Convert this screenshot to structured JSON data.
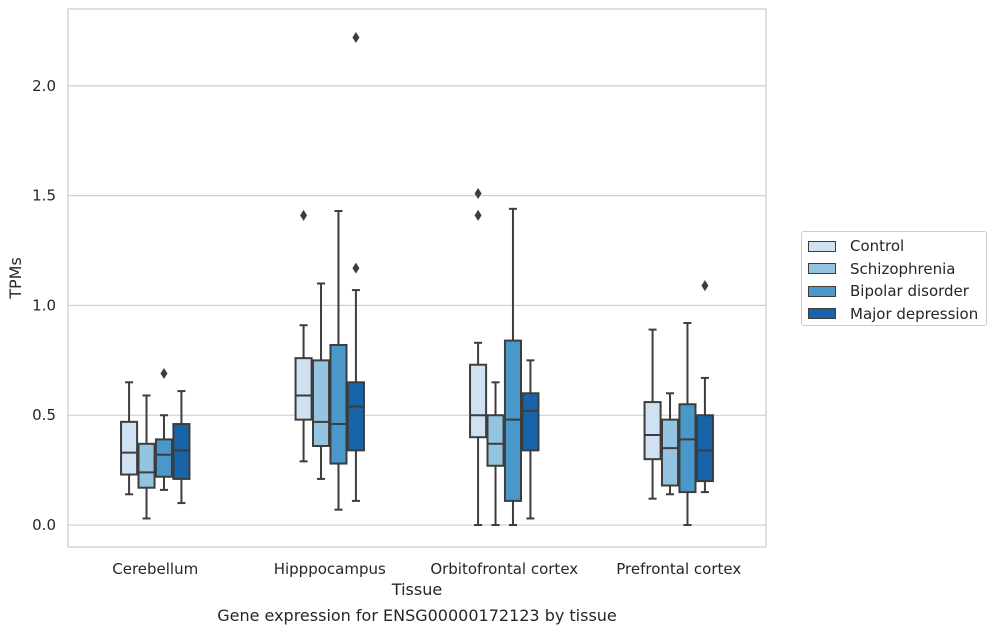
{
  "caption": "Gene expression for ENSG00000172123 by tissue",
  "chart_data": {
    "type": "box",
    "xlabel": "Tissue",
    "ylabel": "TPMs",
    "ylim": [
      -0.1,
      2.35
    ],
    "yticks": [
      0.0,
      0.5,
      1.0,
      1.5,
      2.0
    ],
    "ytick_labels": [
      "0.0",
      "0.5",
      "1.0",
      "1.5",
      "2.0"
    ],
    "grid": "horizontal",
    "legend_position": "right",
    "categories": [
      "Cerebellum",
      "Hipppocampus",
      "Orbitofrontal cortex",
      "Prefrontal cortex"
    ],
    "series": [
      {
        "name": "Control",
        "color": "#d0e1f2",
        "boxes": [
          {
            "whisker_low": 0.14,
            "q1": 0.23,
            "median": 0.33,
            "q3": 0.47,
            "whisker_high": 0.65,
            "outliers": []
          },
          {
            "whisker_low": 0.29,
            "q1": 0.48,
            "median": 0.59,
            "q3": 0.76,
            "whisker_high": 0.91,
            "outliers": [
              1.41
            ]
          },
          {
            "whisker_low": 0.0,
            "q1": 0.4,
            "median": 0.5,
            "q3": 0.73,
            "whisker_high": 0.83,
            "outliers": [
              1.41,
              1.51
            ]
          },
          {
            "whisker_low": 0.12,
            "q1": 0.3,
            "median": 0.41,
            "q3": 0.56,
            "whisker_high": 0.89,
            "outliers": []
          }
        ]
      },
      {
        "name": "Schizophrenia",
        "color": "#94c4df",
        "boxes": [
          {
            "whisker_low": 0.03,
            "q1": 0.17,
            "median": 0.24,
            "q3": 0.37,
            "whisker_high": 0.59,
            "outliers": []
          },
          {
            "whisker_low": 0.21,
            "q1": 0.36,
            "median": 0.47,
            "q3": 0.75,
            "whisker_high": 1.1,
            "outliers": []
          },
          {
            "whisker_low": 0.0,
            "q1": 0.27,
            "median": 0.37,
            "q3": 0.5,
            "whisker_high": 0.65,
            "outliers": []
          },
          {
            "whisker_low": 0.14,
            "q1": 0.18,
            "median": 0.35,
            "q3": 0.48,
            "whisker_high": 0.6,
            "outliers": []
          }
        ]
      },
      {
        "name": "Bipolar disorder",
        "color": "#4a98c9",
        "boxes": [
          {
            "whisker_low": 0.16,
            "q1": 0.22,
            "median": 0.32,
            "q3": 0.39,
            "whisker_high": 0.5,
            "outliers": [
              0.69
            ]
          },
          {
            "whisker_low": 0.07,
            "q1": 0.28,
            "median": 0.46,
            "q3": 0.82,
            "whisker_high": 1.43,
            "outliers": []
          },
          {
            "whisker_low": 0.0,
            "q1": 0.11,
            "median": 0.48,
            "q3": 0.84,
            "whisker_high": 1.44,
            "outliers": []
          },
          {
            "whisker_low": 0.0,
            "q1": 0.15,
            "median": 0.39,
            "q3": 0.55,
            "whisker_high": 0.92,
            "outliers": []
          }
        ]
      },
      {
        "name": "Major depression",
        "color": "#1764ab",
        "boxes": [
          {
            "whisker_low": 0.1,
            "q1": 0.21,
            "median": 0.34,
            "q3": 0.46,
            "whisker_high": 0.61,
            "outliers": []
          },
          {
            "whisker_low": 0.11,
            "q1": 0.34,
            "median": 0.54,
            "q3": 0.65,
            "whisker_high": 1.07,
            "outliers": [
              1.17,
              2.22
            ]
          },
          {
            "whisker_low": 0.03,
            "q1": 0.34,
            "median": 0.52,
            "q3": 0.6,
            "whisker_high": 0.75,
            "outliers": []
          },
          {
            "whisker_low": 0.15,
            "q1": 0.2,
            "median": 0.34,
            "q3": 0.5,
            "whisker_high": 0.67,
            "outliers": [
              1.09
            ]
          }
        ]
      }
    ]
  }
}
